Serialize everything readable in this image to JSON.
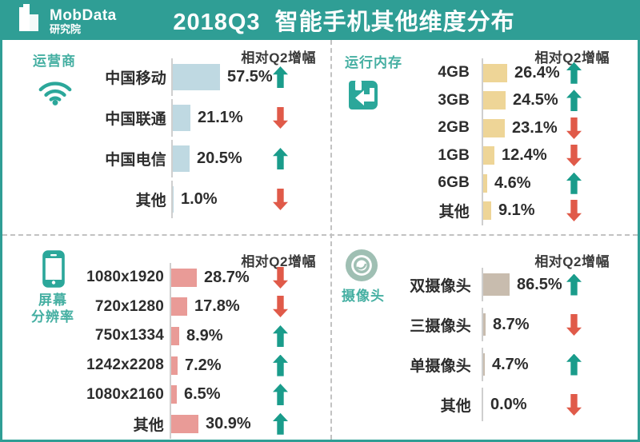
{
  "header": {
    "logo_title": "MobData",
    "logo_subtitle": "研究院",
    "title": "2018Q3  智能手机其他维度分布"
  },
  "colors": {
    "header_teal": "#2F9E95",
    "section_label_teal": "#45AFA2",
    "up_arrow": "#1A9C8B",
    "down_arrow": "#E05A49",
    "text_dark": "#2D2D2D",
    "divider_gray": "#C2C2C2",
    "axis_gray": "#CFCFCF"
  },
  "chart_data": [
    {
      "type": "bar",
      "title": "运营商",
      "section_label": "运营商",
      "icon": "wifi-icon",
      "note": "相对Q2增幅",
      "bar_color": "#BFD9E2",
      "categories": [
        "中国移动",
        "中国联通",
        "中国电信",
        "其他"
      ],
      "values": [
        57.5,
        21.1,
        20.5,
        1.0
      ],
      "value_labels": [
        "57.5%",
        "21.1%",
        "20.5%",
        "1.0%"
      ],
      "trends": [
        "up",
        "down",
        "up",
        "down"
      ],
      "unit": "%"
    },
    {
      "type": "bar",
      "title": "运行内存",
      "section_label": "运行内存",
      "icon": "memory-icon",
      "note": "相对Q2增幅",
      "bar_color": "#EED597",
      "categories": [
        "4GB",
        "3GB",
        "2GB",
        "1GB",
        "6GB",
        "其他"
      ],
      "values": [
        26.4,
        24.5,
        23.1,
        12.4,
        4.6,
        9.1
      ],
      "value_labels": [
        "26.4%",
        "24.5%",
        "23.1%",
        "12.4%",
        "4.6%",
        "9.1%"
      ],
      "trends": [
        "up",
        "up",
        "down",
        "down",
        "up",
        "down"
      ],
      "unit": "%"
    },
    {
      "type": "bar",
      "title": "屏幕分辨率",
      "section_label": "屏幕\n分辨率",
      "icon": "phone-icon",
      "note": "相对Q2增幅",
      "bar_color": "#E99B97",
      "categories": [
        "1080x1920",
        "720x1280",
        "750x1334",
        "1242x2208",
        "1080x2160",
        "其他"
      ],
      "values": [
        28.7,
        17.8,
        8.9,
        7.2,
        6.5,
        30.9
      ],
      "value_labels": [
        "28.7%",
        "17.8%",
        "8.9%",
        "7.2%",
        "6.5%",
        "30.9%"
      ],
      "trends": [
        "down",
        "down",
        "up",
        "up",
        "up",
        "up"
      ],
      "unit": "%"
    },
    {
      "type": "bar",
      "title": "摄像头",
      "section_label": "摄像头",
      "icon": "camera-icon",
      "note": "相对Q2增幅",
      "bar_color": "#C8BCAE",
      "categories": [
        "双摄像头",
        "三摄像头",
        "单摄像头",
        "其他"
      ],
      "values": [
        86.5,
        8.7,
        4.7,
        0.0
      ],
      "value_labels": [
        "86.5%",
        "8.7%",
        "4.7%",
        "0.0%"
      ],
      "trends": [
        "up",
        "down",
        "up",
        "down"
      ],
      "unit": "%"
    }
  ]
}
